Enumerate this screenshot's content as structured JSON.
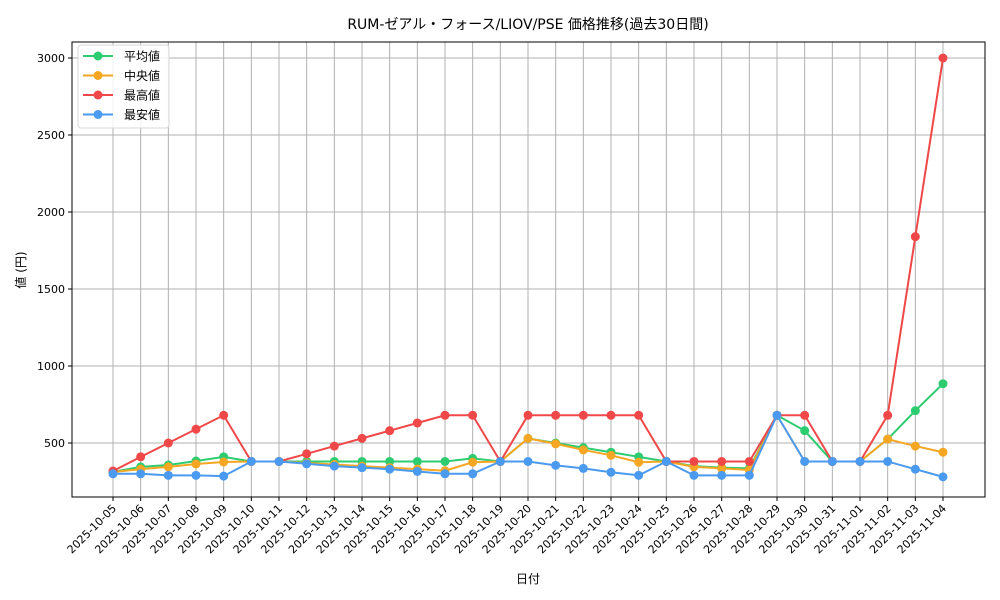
{
  "chart_data": {
    "type": "line",
    "title": "RUM-ゼアル・フォース/LIOV/PSE 価格推移(過去30日間)",
    "xlabel": "日付",
    "ylabel": "値 (円)",
    "ylim": [
      150,
      3130
    ],
    "yticks": [
      500,
      1000,
      1500,
      2000,
      2500,
      3000
    ],
    "grid": true,
    "legend_position": "upper left",
    "x": [
      "2025-10-05",
      "2025-10-06",
      "2025-10-07",
      "2025-10-08",
      "2025-10-09",
      "2025-10-10",
      "2025-10-11",
      "2025-10-12",
      "2025-10-13",
      "2025-10-14",
      "2025-10-15",
      "2025-10-16",
      "2025-10-17",
      "2025-10-18",
      "2025-10-19",
      "2025-10-20",
      "2025-10-21",
      "2025-10-22",
      "2025-10-23",
      "2025-10-24",
      "2025-10-25",
      "2025-10-26",
      "2025-10-27",
      "2025-10-28",
      "2025-10-29",
      "2025-10-30",
      "2025-10-31",
      "2025-11-01",
      "2025-11-02",
      "2025-11-03",
      "2025-11-04"
    ],
    "series": [
      {
        "name": "平均値",
        "color": "#2ecc71",
        "values": [
          312,
          345,
          357,
          383,
          410,
          380,
          380,
          380,
          380,
          380,
          380,
          380,
          380,
          400,
          380,
          530,
          500,
          470,
          440,
          410,
          380,
          350,
          340,
          335,
          680,
          580,
          380,
          380,
          525,
          710,
          885
        ]
      },
      {
        "name": "中央値",
        "color": "#f5a623",
        "values": [
          312,
          330,
          345,
          364,
          377,
          380,
          380,
          370,
          360,
          350,
          340,
          330,
          320,
          375,
          380,
          530,
          495,
          455,
          420,
          375,
          380,
          345,
          335,
          325,
          680,
          380,
          380,
          380,
          525,
          480,
          440
        ]
      },
      {
        "name": "最高値",
        "color": "#f04848",
        "values": [
          318,
          410,
          500,
          590,
          680,
          380,
          380,
          430,
          480,
          530,
          580,
          630,
          680,
          680,
          380,
          680,
          680,
          680,
          680,
          680,
          380,
          380,
          380,
          380,
          680,
          680,
          380,
          380,
          680,
          1840,
          3000
        ]
      },
      {
        "name": "最安値",
        "color": "#4a9af0",
        "values": [
          300,
          300,
          290,
          290,
          285,
          380,
          380,
          365,
          350,
          340,
          330,
          315,
          300,
          300,
          380,
          380,
          355,
          335,
          310,
          290,
          380,
          290,
          290,
          290,
          680,
          380,
          380,
          380,
          380,
          330,
          280
        ]
      }
    ]
  }
}
